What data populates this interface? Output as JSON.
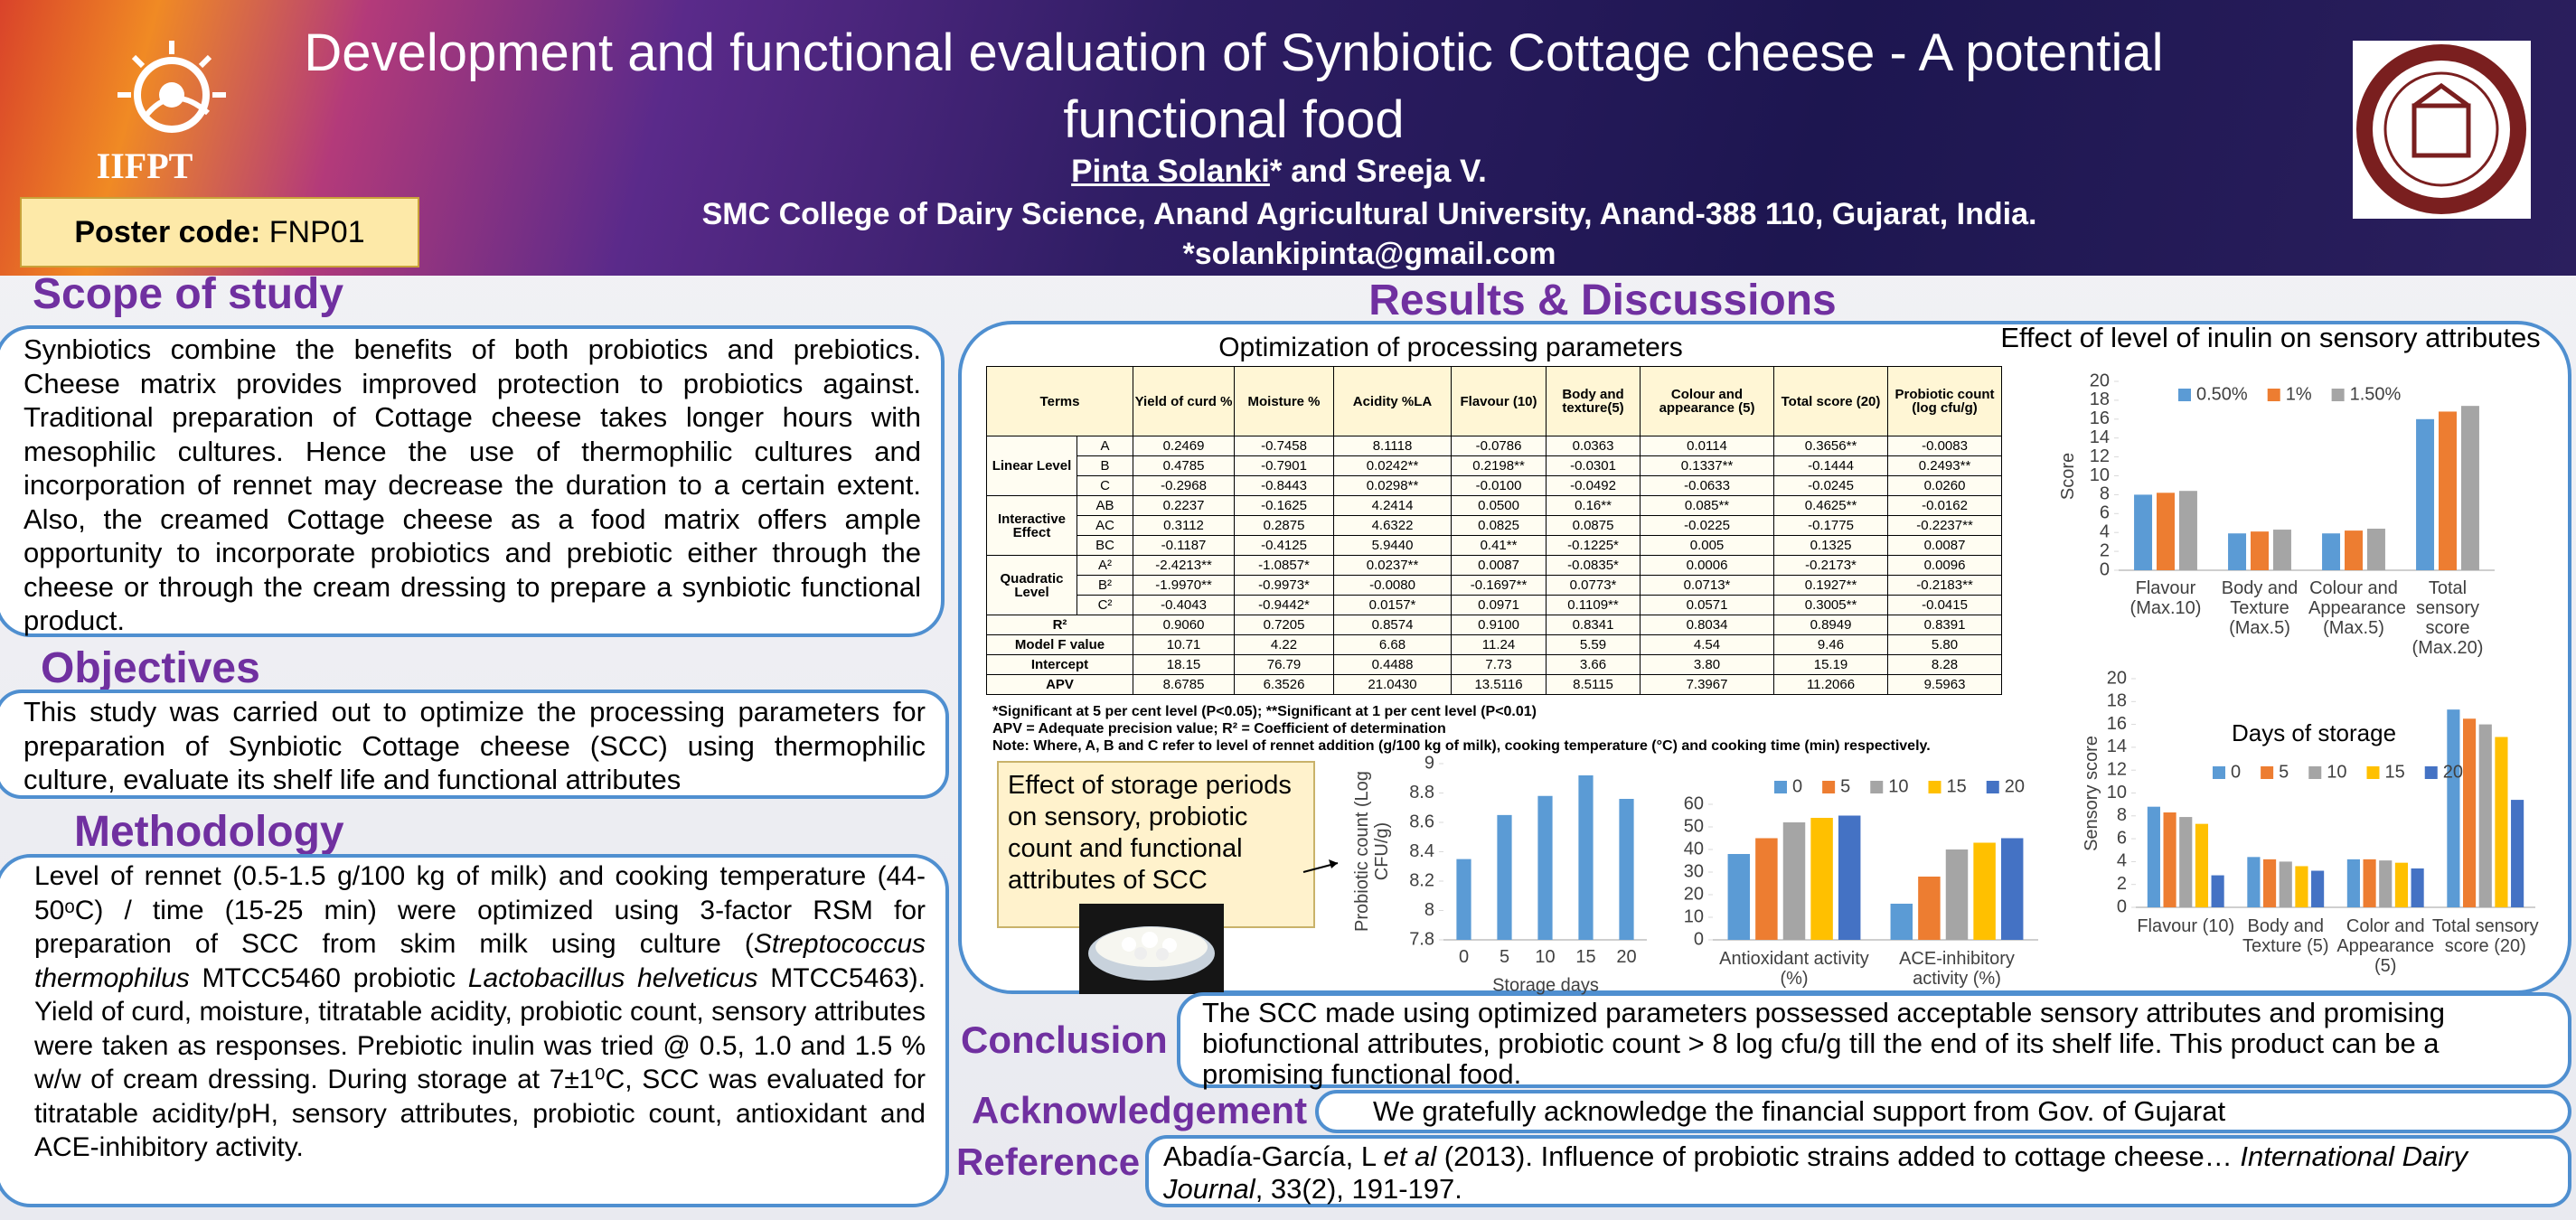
{
  "header": {
    "title": "Development and functional evaluation of Synbiotic Cottage cheese - A potential functional food",
    "logo_text": "IIFPT",
    "poster_code_label": "Poster code:",
    "poster_code": "FNP01",
    "author_lead": "Pinta Solanki",
    "author_rest": "* and  Sreeja V.",
    "affiliation": "SMC College of Dairy Science, Anand Agricultural University, Anand-388 110, Gujarat, India.",
    "email": "*solankipinta@gmail.com"
  },
  "scope": {
    "heading": "Scope of study",
    "text": "Synbiotics combine the benefits of both probiotics and prebiotics. Cheese matrix provides improved protection to probiotics against. Traditional preparation of Cottage cheese takes longer hours with mesophilic cultures. Hence the use of thermophilic cultures and incorporation of rennet may decrease the duration to a certain extent. Also, the creamed Cottage cheese as a food matrix offers ample opportunity to incorporate probiotics and prebiotic either through the cheese or through the cream dressing to prepare a synbiotic functional product."
  },
  "objectives": {
    "heading": "Objectives",
    "text": "This study was carried out to optimize the processing parameters for preparation of Synbiotic Cottage cheese (SCC) using thermophilic culture, evaluate its shelf life and functional attributes"
  },
  "methodology": {
    "heading": "Methodology",
    "runs": [
      {
        "text": "Level of rennet (0.5-1.5 g/100 kg of milk) and cooking temperature (44-50ᵒC) / time (15-25 min) were optimized using 3-factor RSM for preparation of SCC from skim milk using culture (",
        "italic": false
      },
      {
        "text": "Streptococcus thermophilus",
        "italic": true
      },
      {
        "text": " MTCC5460 probiotic ",
        "italic": false
      },
      {
        "text": "Lactobacillus helveticus",
        "italic": true
      },
      {
        "text": " MTCC5463). Yield of curd, moisture, titratable acidity, probiotic count, sensory attributes were taken as responses. Prebiotic inulin was tried @ 0.5, 1.0 and 1.5 % w/w of cream dressing. During storage at 7±1⁰C, SCC was evaluated for titratable acidity/pH, sensory attributes, probiotic count, antioxidant and ACE-inhibitory activity.",
        "italic": false
      }
    ]
  },
  "results": {
    "heading": "Results & Discussions",
    "storage_note": "Effect of storage periods on sensory, probiotic count and functional attributes of SCC"
  },
  "table": {
    "title": "Optimization of processing parameters",
    "header": [
      "Terms",
      "Yield of curd %",
      "Moisture %",
      "Acidity %LA",
      "Flavour (10)",
      "Body and texture(5)",
      "Colour and appearance (5)",
      "Total score (20)",
      "Probiotic count (log cfu/g)"
    ],
    "groups": [
      {
        "label": "Linear Level",
        "rows": [
          [
            "A",
            "0.2469",
            "-0.7458",
            "8.1118",
            "-0.0786",
            "0.0363",
            "0.0114",
            "0.3656**",
            "-0.0083"
          ],
          [
            "B",
            "0.4785",
            "-0.7901",
            "0.0242**",
            "0.2198**",
            "-0.0301",
            "0.1337**",
            "-0.1444",
            "0.2493**"
          ],
          [
            "C",
            "-0.2968",
            "-0.8443",
            "0.0298**",
            "-0.0100",
            "-0.0492",
            "-0.0633",
            "-0.0245",
            "0.0260"
          ]
        ]
      },
      {
        "label": "Interactive Effect",
        "rows": [
          [
            "AB",
            "0.2237",
            "-0.1625",
            "4.2414",
            "0.0500",
            "0.16**",
            "0.085**",
            "0.4625**",
            "-0.0162"
          ],
          [
            "AC",
            "0.3112",
            "0.2875",
            "4.6322",
            "0.0825",
            "0.0875",
            "-0.0225",
            "-0.1775",
            "-0.2237**"
          ],
          [
            "BC",
            "-0.1187",
            "-0.4125",
            "5.9440",
            "0.41**",
            "-0.1225*",
            "0.005",
            "0.1325",
            "0.0087"
          ]
        ]
      },
      {
        "label": "Quadratic Level",
        "rows": [
          [
            "A²",
            "-2.4213**",
            "-1.0857*",
            "0.0237**",
            "0.0087",
            "-0.0835*",
            "0.0006",
            "-0.2173*",
            "0.0096"
          ],
          [
            "B²",
            "-1.9970**",
            "-0.9973*",
            "-0.0080",
            "-0.1697**",
            "0.0773*",
            "0.0713*",
            "0.1927**",
            "-0.2183**"
          ],
          [
            "C²",
            "-0.4043",
            "-0.9442*",
            "0.0157*",
            "0.0971",
            "0.1109**",
            "0.0571",
            "0.3005**",
            "-0.0415"
          ]
        ]
      }
    ],
    "summary_rows": [
      [
        "R²",
        "0.9060",
        "0.7205",
        "0.8574",
        "0.9100",
        "0.8341",
        "0.8034",
        "0.8949",
        "0.8391"
      ],
      [
        "Model F value",
        "10.71",
        "4.22",
        "6.68",
        "11.24",
        "5.59",
        "4.54",
        "9.46",
        "5.80"
      ],
      [
        "Intercept",
        "18.15",
        "76.79",
        "0.4488",
        "7.73",
        "3.66",
        "3.80",
        "15.19",
        "8.28"
      ],
      [
        "APV",
        "8.6785",
        "6.3526",
        "21.0430",
        "13.5116",
        "8.5115",
        "7.3967",
        "11.2066",
        "9.5963"
      ]
    ],
    "footnotes": [
      "*Significant at 5 per cent level (P<0.05); **Significant at 1 per cent level (P<0.01)",
      "APV = Adequate precision value; R² = Coefficient of determination",
      "Note: Where, A, B and C refer to level of rennet addition (g/100 kg of milk), cooking temperature (°C) and cooking time (min) respectively."
    ]
  },
  "chart_data": [
    {
      "type": "bar",
      "title": "Effect of level of inulin on sensory attributes",
      "categories": [
        "Flavour (Max.10)",
        "Body and Texture (Max.5)",
        "Colour and Appearance (Max.5)",
        "Total sensory score (Max.20)"
      ],
      "series": [
        {
          "name": "0.50%",
          "color": "#5b9bd5",
          "values": [
            8.0,
            3.9,
            3.9,
            16.0
          ]
        },
        {
          "name": "1%",
          "color": "#ed7d31",
          "values": [
            8.2,
            4.1,
            4.2,
            16.8
          ]
        },
        {
          "name": "1.50%",
          "color": "#a5a5a5",
          "values": [
            8.4,
            4.3,
            4.4,
            17.4
          ]
        }
      ],
      "y_label": "Score",
      "ylim": [
        0,
        20
      ],
      "yticks": [
        0,
        2,
        4,
        6,
        8,
        10,
        12,
        14,
        16,
        18,
        20
      ]
    },
    {
      "type": "bar",
      "legend_title": "Days of storage",
      "categories": [
        "Flavour (10)",
        "Body and Texture (5)",
        "Color and Appearance (5)",
        "Total sensory score (20)"
      ],
      "series": [
        {
          "name": "0",
          "color": "#5b9bd5",
          "values": [
            8.8,
            4.4,
            4.2,
            17.3
          ]
        },
        {
          "name": "5",
          "color": "#ed7d31",
          "values": [
            8.3,
            4.2,
            4.2,
            16.5
          ]
        },
        {
          "name": "10",
          "color": "#a5a5a5",
          "values": [
            7.9,
            4.0,
            4.1,
            16.0
          ]
        },
        {
          "name": "15",
          "color": "#ffc000",
          "values": [
            7.3,
            3.6,
            3.9,
            14.9
          ]
        },
        {
          "name": "20",
          "color": "#4472c4",
          "values": [
            2.8,
            3.2,
            3.4,
            9.4
          ]
        }
      ],
      "y_label": "Sensory score",
      "ylim": [
        0,
        20
      ],
      "yticks": [
        0,
        2,
        4,
        6,
        8,
        10,
        12,
        14,
        16,
        18,
        20
      ]
    },
    {
      "type": "bar",
      "categories": [
        "0",
        "5",
        "10",
        "15",
        "20"
      ],
      "values": [
        8.35,
        8.65,
        8.78,
        8.92,
        8.76
      ],
      "color": "#5b9bd5",
      "y_label": "Probiotic count (Log CFU/g)",
      "x_label": "Storage days",
      "ylim": [
        7.8,
        9
      ],
      "yticks": [
        7.8,
        8,
        8.2,
        8.4,
        8.6,
        8.8,
        9
      ]
    },
    {
      "type": "bar",
      "categories": [
        "Antioxidant activity (%)",
        "ACE-inhibitory activity (%)"
      ],
      "series": [
        {
          "name": "0",
          "color": "#5b9bd5",
          "values": [
            38,
            16
          ]
        },
        {
          "name": "5",
          "color": "#ed7d31",
          "values": [
            45,
            28
          ]
        },
        {
          "name": "10",
          "color": "#a5a5a5",
          "values": [
            52,
            40
          ]
        },
        {
          "name": "15",
          "color": "#ffc000",
          "values": [
            54,
            43
          ]
        },
        {
          "name": "20",
          "color": "#4472c4",
          "values": [
            55,
            45
          ]
        }
      ],
      "ylim": [
        0,
        60
      ],
      "yticks": [
        0,
        10,
        20,
        30,
        40,
        50,
        60
      ]
    }
  ],
  "conclusion": {
    "heading": "Conclusion",
    "text": "The SCC made using optimized parameters possessed acceptable sensory attributes and promising biofunctional attributes, probiotic count > 8 log cfu/g till the end of its shelf life. This product can be a promising functional food."
  },
  "acknowledgement": {
    "heading": "Acknowledgement",
    "text": "We gratefully acknowledge the financial support from Gov. of Gujarat"
  },
  "reference": {
    "heading": "Reference",
    "runs": [
      {
        "text": "Abadía-García, L ",
        "italic": false
      },
      {
        "text": "et al",
        "italic": true
      },
      {
        "text": "  (2013). Influence of probiotic strains added to cottage cheese… ",
        "italic": false
      },
      {
        "text": "International Dairy Journal",
        "italic": true
      },
      {
        "text": ", 33(2), 191-197.",
        "italic": false
      }
    ]
  }
}
